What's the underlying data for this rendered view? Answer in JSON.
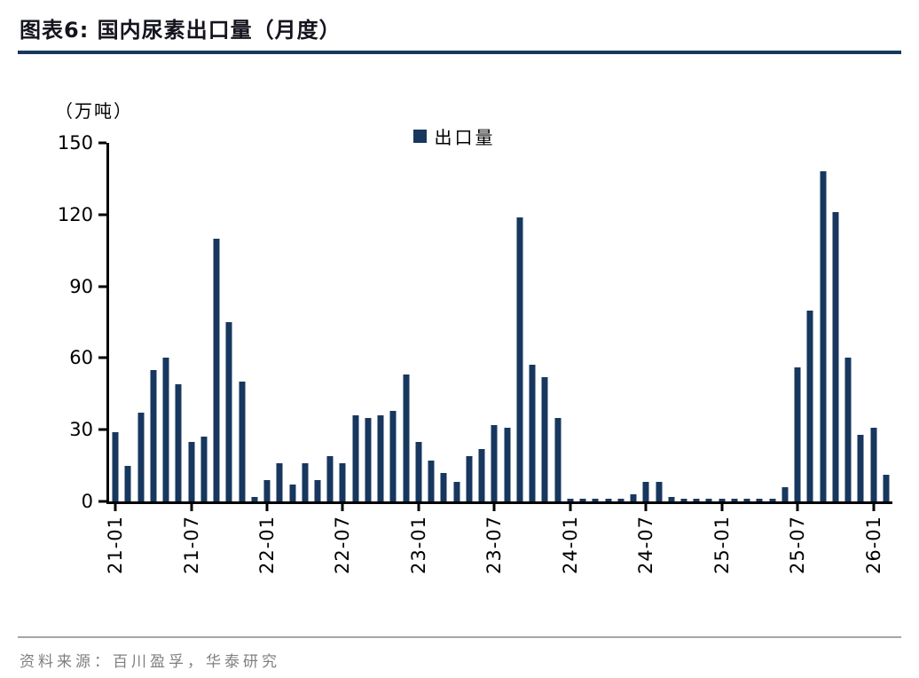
{
  "header": {
    "title": "图表6:  国内尿素出口量（月度）"
  },
  "footer": {
    "source": "资料来源：百川盈孚，华泰研究"
  },
  "chart_data": {
    "type": "bar",
    "title": "国内尿素出口量（月度）",
    "unit_label": "（万吨）",
    "legend_label": "出口量",
    "bar_color": "#17375E",
    "xlabel": "",
    "ylabel": "（万吨）",
    "ylim": [
      0,
      150
    ],
    "yticks": [
      0,
      30,
      60,
      90,
      120,
      150
    ],
    "grid": false,
    "legend_position": "top-center",
    "x_tick_every": 6,
    "x_tick_labels": [
      "21-01",
      "21-07",
      "22-01",
      "22-07",
      "23-01",
      "23-07",
      "24-01",
      "24-07",
      "25-01",
      "25-07",
      "26-01"
    ],
    "categories": [
      "21-01",
      "21-02",
      "21-03",
      "21-04",
      "21-05",
      "21-06",
      "21-07",
      "21-08",
      "21-09",
      "21-10",
      "21-11",
      "21-12",
      "22-01",
      "22-02",
      "22-03",
      "22-04",
      "22-05",
      "22-06",
      "22-07",
      "22-08",
      "22-09",
      "22-10",
      "22-11",
      "22-12",
      "23-01",
      "23-02",
      "23-03",
      "23-04",
      "23-05",
      "23-06",
      "23-07",
      "23-08",
      "23-09",
      "23-10",
      "23-11",
      "23-12",
      "24-01",
      "24-02",
      "24-03",
      "24-04",
      "24-05",
      "24-06",
      "24-07",
      "24-08",
      "24-09",
      "24-10",
      "24-11",
      "24-12",
      "25-01",
      "25-02",
      "25-03",
      "25-04",
      "25-05",
      "25-06",
      "25-07",
      "25-08",
      "25-09",
      "25-10",
      "25-11",
      "25-12",
      "26-01",
      "26-02"
    ],
    "values": [
      29,
      15,
      37,
      55,
      60,
      49,
      25,
      27,
      110,
      75,
      50,
      2,
      9,
      16,
      7,
      16,
      9,
      19,
      16,
      36,
      35,
      36,
      38,
      53,
      25,
      17,
      12,
      8,
      19,
      22,
      32,
      31,
      119,
      57,
      52,
      35,
      1,
      1,
      1,
      1,
      1,
      3,
      8,
      8,
      2,
      1,
      1,
      1,
      1,
      1,
      1,
      1,
      1,
      6,
      56,
      80,
      138,
      121,
      60,
      28,
      31,
      11
    ]
  }
}
